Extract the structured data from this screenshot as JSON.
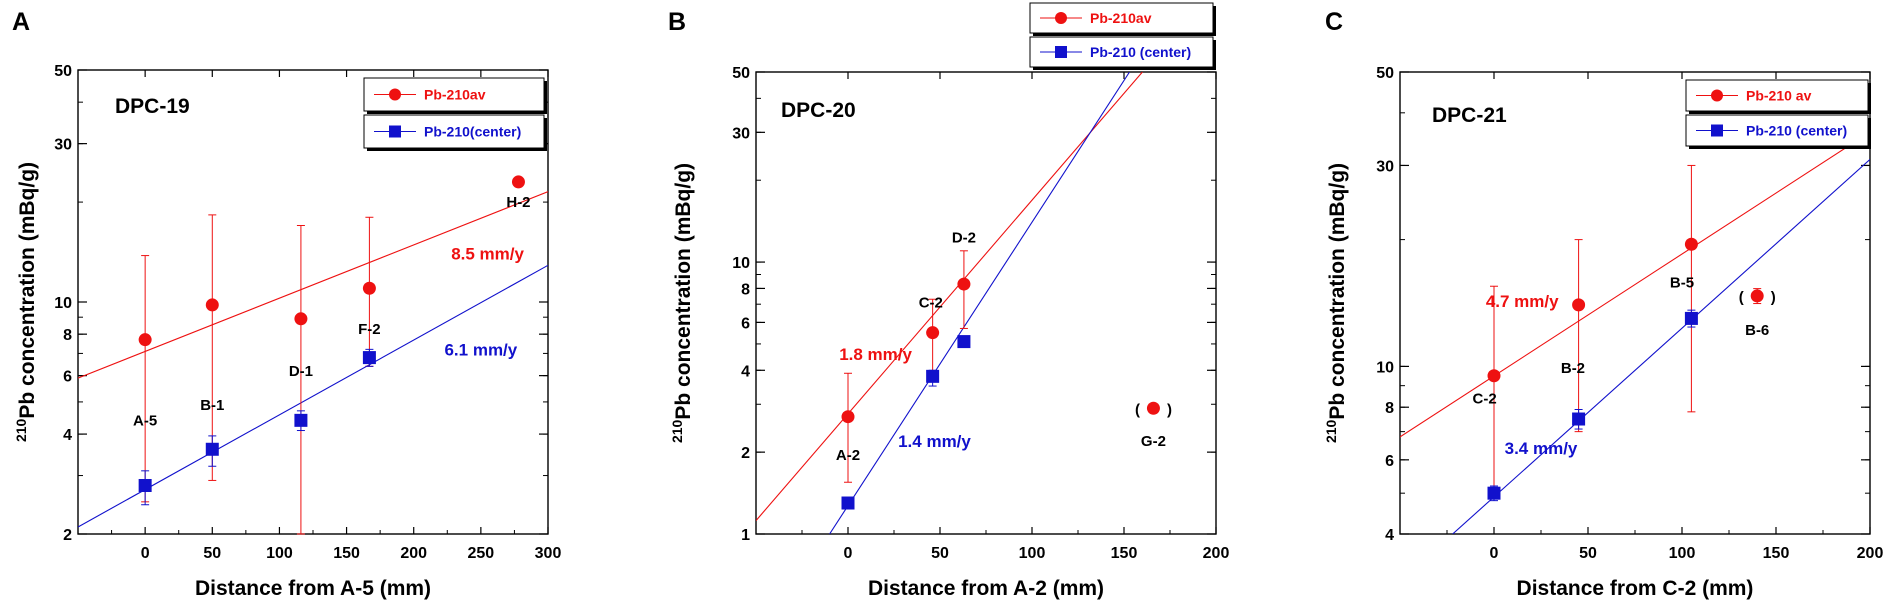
{
  "colors": {
    "red": "#ee1111",
    "blue": "#1111cc",
    "axis": "#000000"
  },
  "chart_data": [
    {
      "type": "scatter",
      "panel": "A",
      "title": "DPC-19",
      "xlabel": "Distance from A-5 (mm)",
      "ylabel_sup": "210",
      "ylabel": "Pb concentration (mBq/g)",
      "xlim": [
        -50,
        300
      ],
      "ylim": [
        2,
        50
      ],
      "yscale": "log",
      "xticks": [
        0,
        50,
        100,
        150,
        200,
        250,
        300
      ],
      "yticks": [
        2,
        4,
        6,
        8,
        10,
        30,
        50
      ],
      "legend": {
        "red": "Pb-210av",
        "blue": "Pb-210(center)",
        "position": "top-right"
      },
      "series": [
        {
          "name": "Pb-210av",
          "color": "red",
          "marker": "circle",
          "points": [
            {
              "x": 0,
              "y": 7.7,
              "err": [
                2.5,
                13.8
              ]
            },
            {
              "x": 50,
              "y": 9.8,
              "err": [
                2.9,
                18.3
              ]
            },
            {
              "x": 116,
              "y": 8.9,
              "err": [
                2.0,
                17.0
              ]
            },
            {
              "x": 167,
              "y": 11.0,
              "err": [
                6.4,
                18.0
              ]
            },
            {
              "x": 278,
              "y": 23.0
            }
          ],
          "fit": [
            [
              -50,
              5.9
            ],
            [
              300,
              21.5
            ]
          ]
        },
        {
          "name": "Pb-210(center)",
          "color": "blue",
          "marker": "square",
          "points": [
            {
              "x": 0,
              "y": 2.8,
              "err": [
                2.45,
                3.1
              ]
            },
            {
              "x": 50,
              "y": 3.6,
              "err": [
                3.2,
                3.95
              ]
            },
            {
              "x": 116,
              "y": 4.4,
              "err": [
                4.1,
                4.7
              ]
            },
            {
              "x": 167,
              "y": 6.8,
              "err": [
                6.4,
                7.2
              ]
            }
          ],
          "fit": [
            [
              -50,
              2.1
            ],
            [
              300,
              12.9
            ]
          ]
        }
      ],
      "point_labels": [
        {
          "text": "A-5",
          "x": 0,
          "y": 4.4
        },
        {
          "text": "B-1",
          "x": 50,
          "y": 4.9
        },
        {
          "text": "D-1",
          "x": 116,
          "y": 6.2
        },
        {
          "text": "F-2",
          "x": 167,
          "y": 8.3
        },
        {
          "text": "H-2",
          "x": 278,
          "y": 20.0
        }
      ],
      "annotations": [
        {
          "text": "8.5 mm/y",
          "x": 255,
          "y": 14.0,
          "color": "red"
        },
        {
          "text": "6.1 mm/y",
          "x": 250,
          "y": 7.2,
          "color": "blue"
        }
      ]
    },
    {
      "type": "scatter",
      "panel": "B",
      "title": "DPC-20",
      "xlabel": "Distance from A-2 (mm)",
      "ylabel_sup": "210",
      "ylabel": "Pb concentration (mBq/g)",
      "xlim": [
        -50,
        200
      ],
      "ylim": [
        1,
        50
      ],
      "yscale": "log",
      "xticks": [
        0,
        50,
        100,
        150,
        200
      ],
      "yticks": [
        1,
        2,
        4,
        6,
        8,
        10,
        30,
        50
      ],
      "legend": {
        "red": "Pb-210av",
        "blue": "Pb-210 (center)",
        "position": "top-center"
      },
      "series": [
        {
          "name": "Pb-210av",
          "color": "red",
          "marker": "circle",
          "points": [
            {
              "x": 0,
              "y": 2.7,
              "err": [
                1.55,
                3.9
              ]
            },
            {
              "x": 46,
              "y": 5.5,
              "err": [
                3.8,
                7.3
              ]
            },
            {
              "x": 63,
              "y": 8.3,
              "err": [
                5.7,
                11.0
              ]
            }
          ],
          "fit": [
            [
              -50,
              1.12
            ],
            [
              160,
              50
            ]
          ]
        },
        {
          "name": "Pb-210 (center)",
          "color": "blue",
          "marker": "square",
          "points": [
            {
              "x": 0,
              "y": 1.3,
              "err": [
                1.25,
                1.36
              ]
            },
            {
              "x": 46,
              "y": 3.8,
              "err": [
                3.5,
                4.0
              ]
            },
            {
              "x": 63,
              "y": 5.1,
              "err": [
                4.9,
                5.3
              ]
            }
          ],
          "fit": [
            [
              -10,
              1.0
            ],
            [
              153,
              50
            ]
          ]
        }
      ],
      "outlier": {
        "x": 166,
        "y": 2.9,
        "color": "red",
        "text_open": "(",
        "text_close": ")"
      },
      "point_labels": [
        {
          "text": "A-2",
          "x": 0,
          "y": 1.95
        },
        {
          "text": "C-2",
          "x": 45,
          "y": 7.1
        },
        {
          "text": "D-2",
          "x": 63,
          "y": 12.3
        },
        {
          "text": "G-2",
          "x": 166,
          "y": 2.2
        }
      ],
      "annotations": [
        {
          "text": "1.8 mm/y",
          "x": 15,
          "y": 4.6,
          "color": "red"
        },
        {
          "text": "1.4 mm/y",
          "x": 47,
          "y": 2.2,
          "color": "blue"
        }
      ]
    },
    {
      "type": "scatter",
      "panel": "C",
      "title": "DPC-21",
      "xlabel": "Distance from C-2 (mm)",
      "ylabel_sup": "210",
      "ylabel": "Pb concentration (mBq/g)",
      "xlim": [
        -50,
        200
      ],
      "ylim": [
        4,
        50
      ],
      "yscale": "log",
      "xticks": [
        0,
        50,
        100,
        150,
        200
      ],
      "yticks": [
        4,
        6,
        8,
        10,
        30,
        50
      ],
      "legend": {
        "red": "Pb-210 av",
        "blue": "Pb-210 (center)",
        "position": "top-right"
      },
      "series": [
        {
          "name": "Pb-210 av",
          "color": "red",
          "marker": "circle",
          "points": [
            {
              "x": 0,
              "y": 9.5,
              "err": [
                5.0,
                15.5
              ]
            },
            {
              "x": 45,
              "y": 14.0,
              "err": [
                7.0,
                20.0
              ]
            },
            {
              "x": 105,
              "y": 19.5,
              "err": [
                7.8,
                30.0
              ]
            }
          ],
          "fit": [
            [
              -50,
              6.8
            ],
            [
              200,
              36.0
            ]
          ]
        },
        {
          "name": "Pb-210 (center)",
          "color": "blue",
          "marker": "square",
          "points": [
            {
              "x": 0,
              "y": 5.0,
              "err": [
                4.8,
                5.2
              ]
            },
            {
              "x": 45,
              "y": 7.5,
              "err": [
                7.1,
                7.9
              ]
            },
            {
              "x": 105,
              "y": 13.0,
              "err": [
                12.4,
                13.6
              ]
            }
          ],
          "fit": [
            [
              -22,
              4.0
            ],
            [
              200,
              31.0
            ]
          ]
        }
      ],
      "outlier": {
        "x": 140,
        "y": 14.7,
        "err": [
          14.1,
          15.3
        ],
        "color": "red",
        "text_open": "(",
        "text_close": ")"
      },
      "point_labels": [
        {
          "text": "C-2",
          "x": -5,
          "y": 8.4
        },
        {
          "text": "B-2",
          "x": 42,
          "y": 9.9
        },
        {
          "text": "B-5",
          "x": 100,
          "y": 15.8
        },
        {
          "text": "B-6",
          "x": 140,
          "y": 12.2
        }
      ],
      "annotations": [
        {
          "text": "4.7 mm/y",
          "x": 15,
          "y": 14.3,
          "color": "red"
        },
        {
          "text": "3.4 mm/y",
          "x": 25,
          "y": 6.4,
          "color": "blue"
        }
      ]
    }
  ]
}
